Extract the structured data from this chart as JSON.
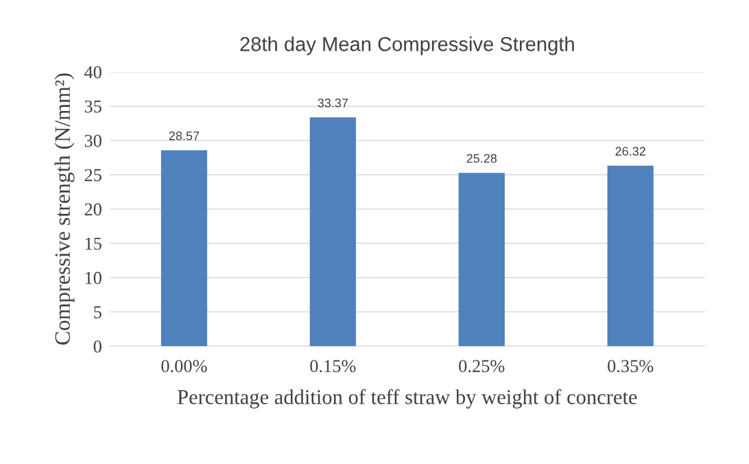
{
  "chart_data": {
    "type": "bar",
    "title": "28th day Mean Compressive Strength",
    "xlabel": "Percentage addition of teff straw by weight of concrete",
    "ylabel": "Compressive strength (N/mm²)",
    "categories": [
      "0.00%",
      "0.15%",
      "0.25%",
      "0.35%"
    ],
    "values": [
      28.57,
      33.37,
      25.28,
      26.32
    ],
    "color": "#4f81bd",
    "ylim": [
      0,
      40
    ],
    "yticks": [
      0,
      5,
      10,
      15,
      20,
      25,
      30,
      35,
      40
    ],
    "grid": "y",
    "data_labels": true,
    "legend": false
  }
}
